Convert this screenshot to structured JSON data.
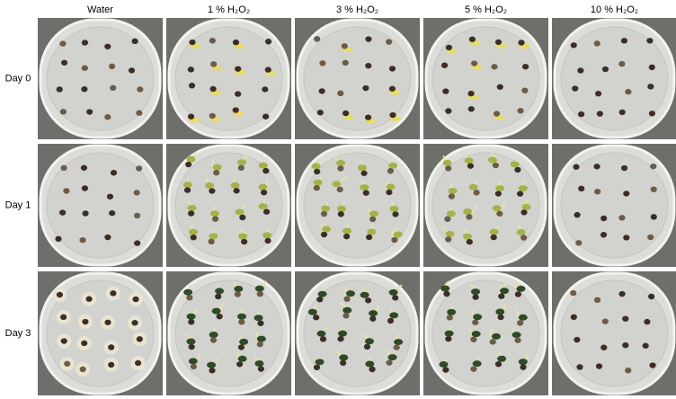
{
  "column_headers": [
    "Water",
    "1 % H₂O₂",
    "3 % H₂O₂",
    "5 % H₂O₂",
    "10 % H₂O₂"
  ],
  "row_labels": [
    "Day 0",
    "Day 1",
    "Day 3"
  ]
}
